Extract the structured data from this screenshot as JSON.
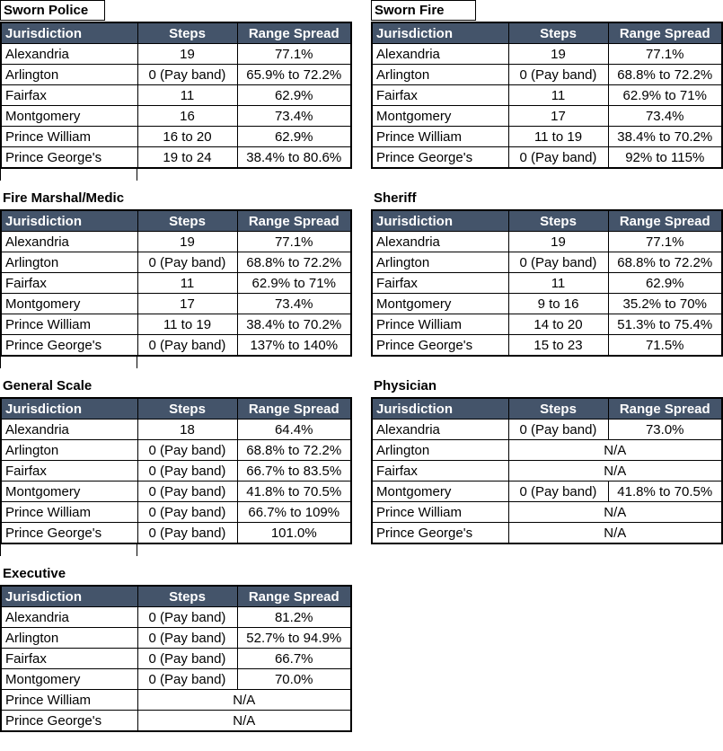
{
  "columns": {
    "jurisdiction": "Jurisdiction",
    "steps": "Steps",
    "range": "Range Spread"
  },
  "colors": {
    "header_bg": "#44546A",
    "header_text": "#FFFFFF",
    "grid_border": "#000000",
    "row_bg": "#FFFFFF",
    "title_text": "#000000"
  },
  "tables": [
    {
      "title": "Sworn Police",
      "rows": [
        {
          "jurisdiction": "Alexandria",
          "steps": "19",
          "range": "77.1%"
        },
        {
          "jurisdiction": "Arlington",
          "steps": "0 (Pay band)",
          "range": "65.9% to 72.2%"
        },
        {
          "jurisdiction": "Fairfax",
          "steps": "11",
          "range": "62.9%"
        },
        {
          "jurisdiction": "Montgomery",
          "steps": "16",
          "range": "73.4%"
        },
        {
          "jurisdiction": "Prince William",
          "steps": "16 to 20",
          "range": "62.9%"
        },
        {
          "jurisdiction": "Prince George's",
          "steps": "19 to 24",
          "range": "38.4% to 80.6%"
        }
      ]
    },
    {
      "title": "Sworn Fire",
      "rows": [
        {
          "jurisdiction": "Alexandria",
          "steps": "19",
          "range": "77.1%"
        },
        {
          "jurisdiction": "Arlington",
          "steps": "0 (Pay band)",
          "range": "68.8% to 72.2%"
        },
        {
          "jurisdiction": "Fairfax",
          "steps": "11",
          "range": "62.9% to 71%"
        },
        {
          "jurisdiction": "Montgomery",
          "steps": "17",
          "range": "73.4%"
        },
        {
          "jurisdiction": "Prince William",
          "steps": "11 to 19",
          "range": "38.4% to 70.2%"
        },
        {
          "jurisdiction": "Prince George's",
          "steps": "0 (Pay band)",
          "range": "92% to 115%"
        }
      ]
    },
    {
      "title": "Fire Marshal/Medic",
      "rows": [
        {
          "jurisdiction": "Alexandria",
          "steps": "19",
          "range": "77.1%"
        },
        {
          "jurisdiction": "Arlington",
          "steps": "0 (Pay band)",
          "range": "68.8% to 72.2%"
        },
        {
          "jurisdiction": "Fairfax",
          "steps": "11",
          "range": "62.9% to 71%"
        },
        {
          "jurisdiction": "Montgomery",
          "steps": "17",
          "range": "73.4%"
        },
        {
          "jurisdiction": "Prince William",
          "steps": "11 to 19",
          "range": "38.4% to 70.2%"
        },
        {
          "jurisdiction": "Prince George's",
          "steps": "0 (Pay band)",
          "range": "137% to 140%"
        }
      ]
    },
    {
      "title": "Sheriff",
      "rows": [
        {
          "jurisdiction": "Alexandria",
          "steps": "19",
          "range": "77.1%"
        },
        {
          "jurisdiction": "Arlington",
          "steps": "0 (Pay band)",
          "range": "68.8% to 72.2%"
        },
        {
          "jurisdiction": "Fairfax",
          "steps": "11",
          "range": "62.9%"
        },
        {
          "jurisdiction": "Montgomery",
          "steps": "9 to 16",
          "range": "35.2% to 70%"
        },
        {
          "jurisdiction": "Prince William",
          "steps": "14 to 20",
          "range": "51.3% to 75.4%"
        },
        {
          "jurisdiction": "Prince George's",
          "steps": "15 to 23",
          "range": "71.5%"
        }
      ]
    },
    {
      "title": "General Scale",
      "rows": [
        {
          "jurisdiction": "Alexandria",
          "steps": "18",
          "range": "64.4%"
        },
        {
          "jurisdiction": "Arlington",
          "steps": "0 (Pay band)",
          "range": "68.8% to 72.2%"
        },
        {
          "jurisdiction": "Fairfax",
          "steps": "0 (Pay band)",
          "range": "66.7% to 83.5%"
        },
        {
          "jurisdiction": "Montgomery",
          "steps": "0 (Pay band)",
          "range": "41.8% to 70.5%"
        },
        {
          "jurisdiction": "Prince William",
          "steps": "0 (Pay band)",
          "range": "66.7% to 109%"
        },
        {
          "jurisdiction": "Prince George's",
          "steps": "0 (Pay band)",
          "range": "101.0%"
        }
      ]
    },
    {
      "title": "Physician",
      "rows": [
        {
          "jurisdiction": "Alexandria",
          "steps": "0 (Pay band)",
          "range": "73.0%"
        },
        {
          "jurisdiction": "Arlington",
          "merged": "N/A"
        },
        {
          "jurisdiction": "Fairfax",
          "merged": "N/A"
        },
        {
          "jurisdiction": "Montgomery",
          "steps": "0 (Pay band)",
          "range": "41.8% to 70.5%"
        },
        {
          "jurisdiction": "Prince William",
          "merged": "N/A"
        },
        {
          "jurisdiction": "Prince George's",
          "merged": "N/A"
        }
      ]
    },
    {
      "title": "Executive",
      "rows": [
        {
          "jurisdiction": "Alexandria",
          "steps": "0 (Pay band)",
          "range": "81.2%"
        },
        {
          "jurisdiction": "Arlington",
          "steps": "0 (Pay band)",
          "range": "52.7% to 94.9%"
        },
        {
          "jurisdiction": "Fairfax",
          "steps": "0 (Pay band)",
          "range": "66.7%"
        },
        {
          "jurisdiction": "Montgomery",
          "steps": "0 (Pay band)",
          "range": "70.0%"
        },
        {
          "jurisdiction": "Prince William",
          "merged": "N/A"
        },
        {
          "jurisdiction": "Prince George's",
          "merged": "N/A"
        }
      ]
    }
  ]
}
